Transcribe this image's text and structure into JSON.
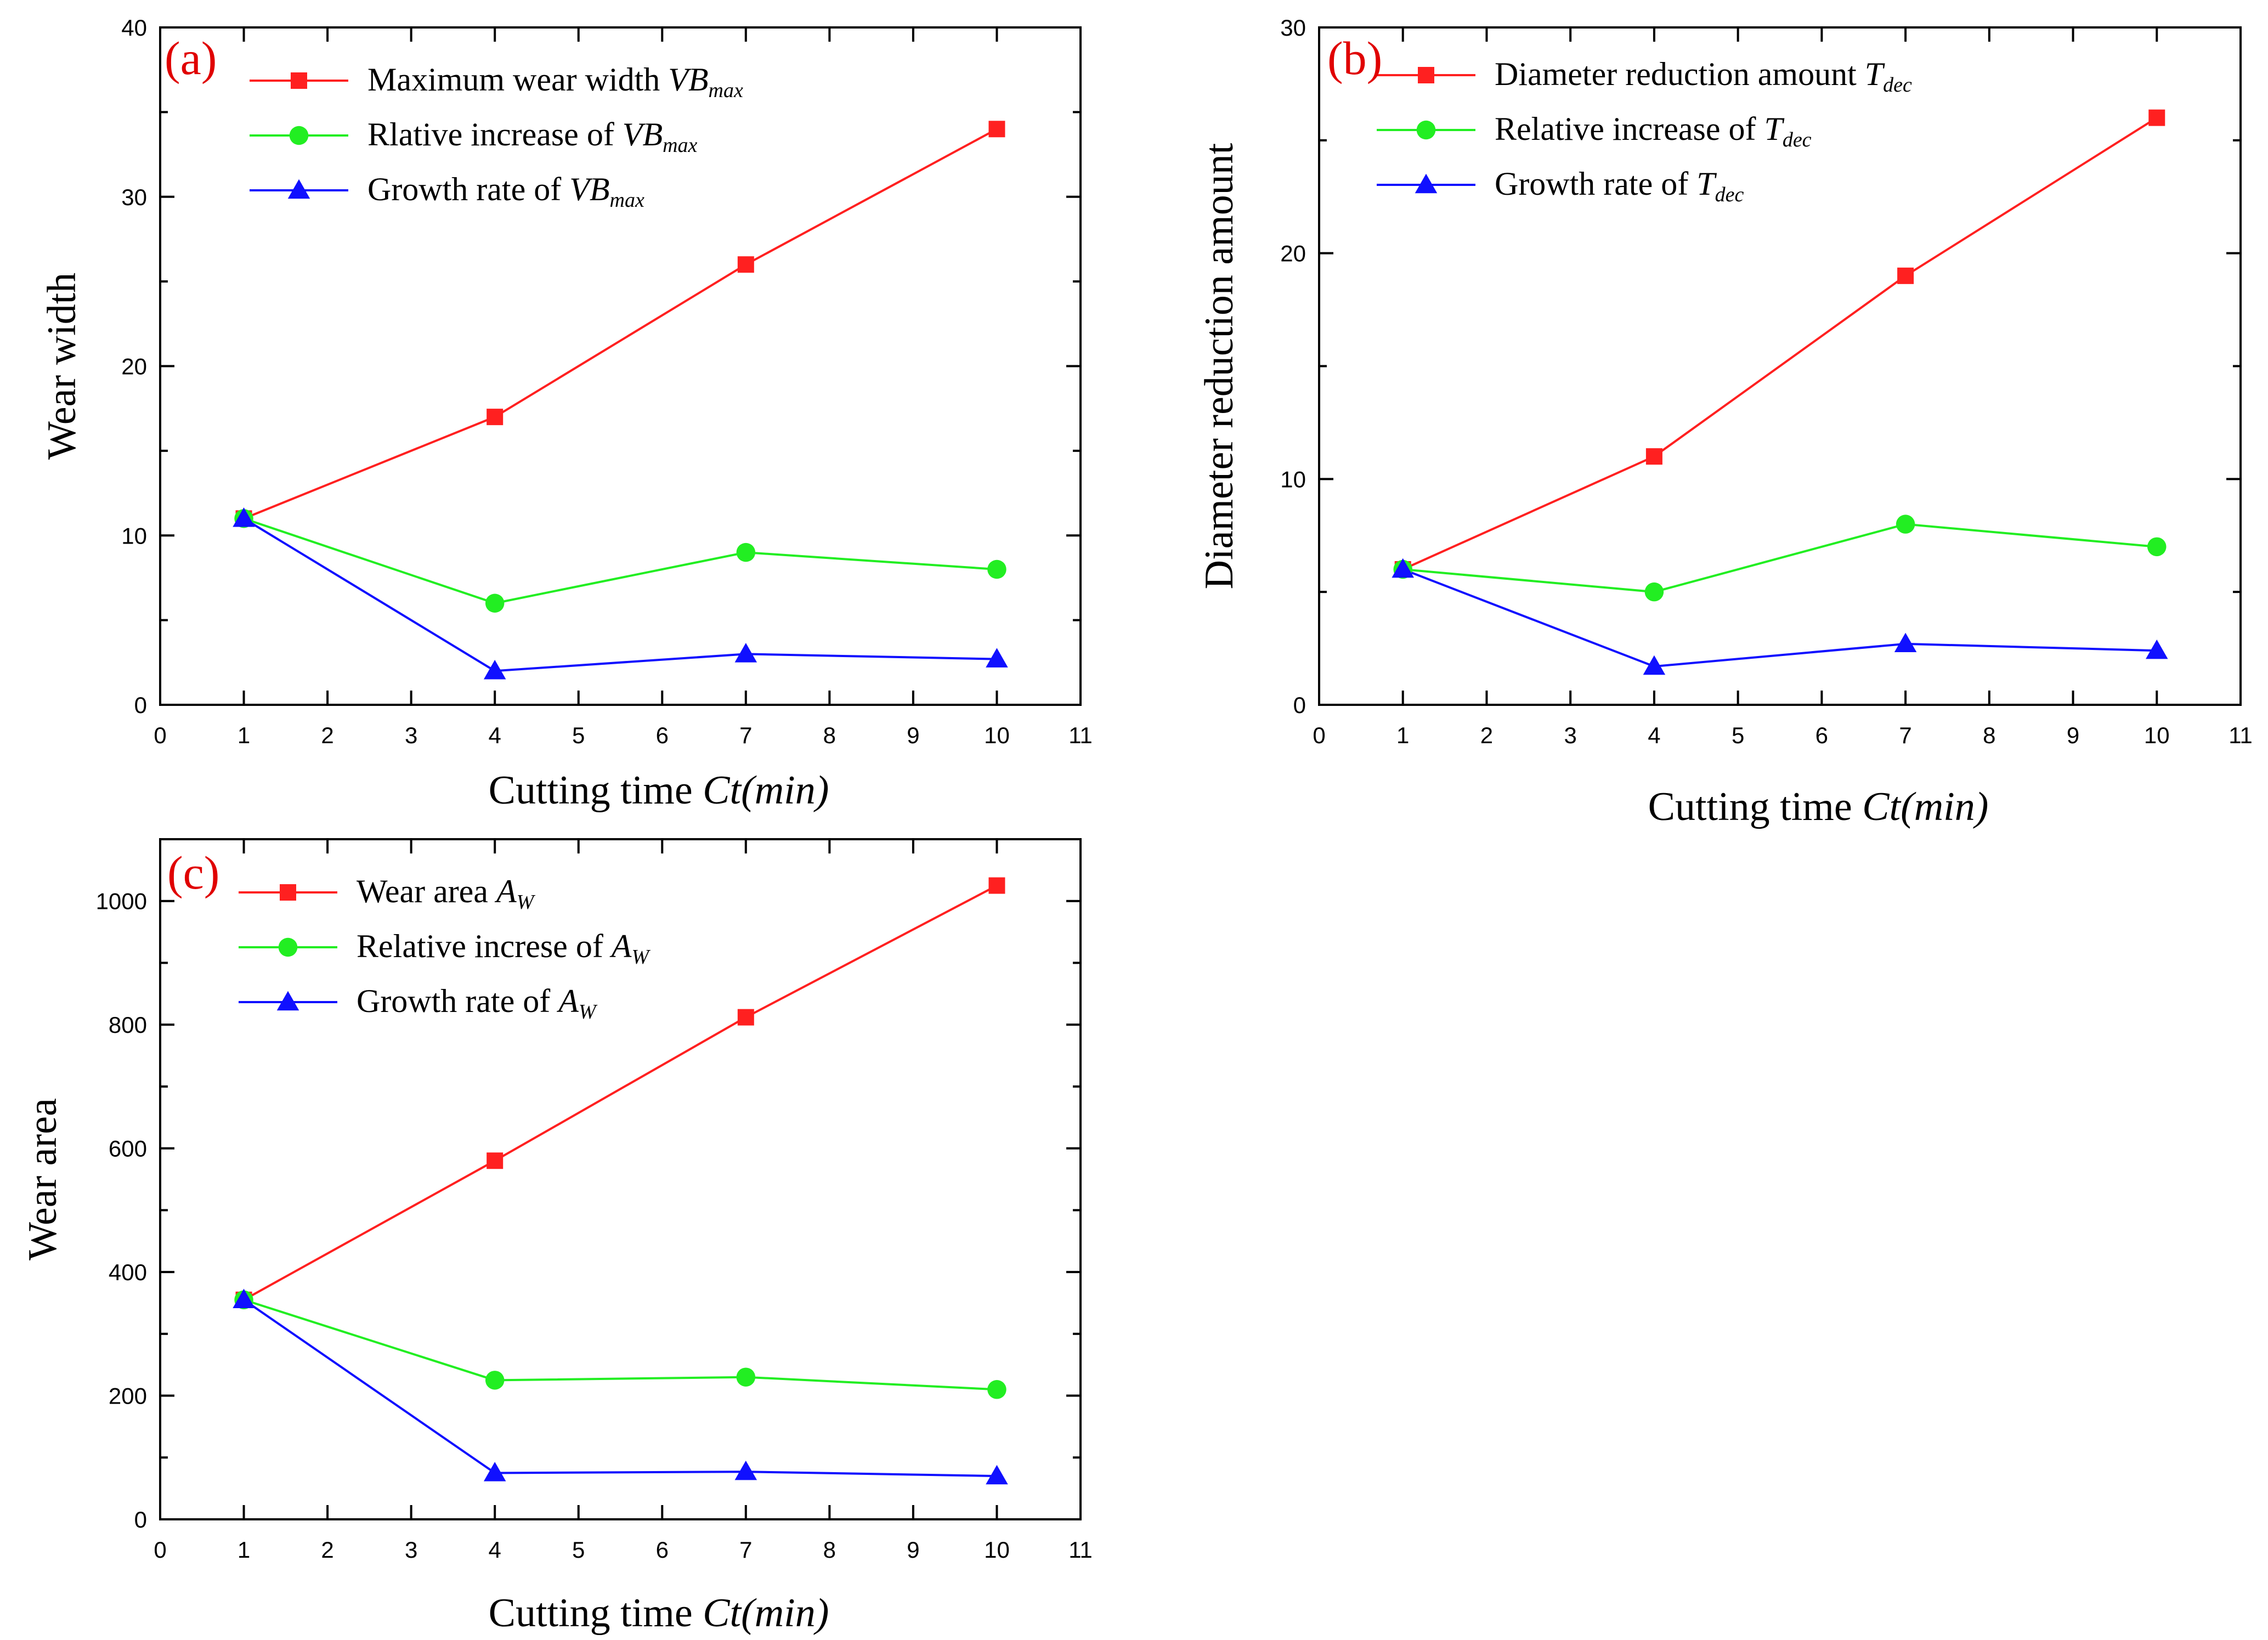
{
  "chart_data": [
    {
      "type": "line",
      "panel_label": "(a)",
      "xlabel": "Cutting time",
      "xlabel_var": "Ct(min)",
      "ylabel": "Wear width",
      "xlim": [
        0,
        11
      ],
      "ylim": [
        0,
        40
      ],
      "x_ticks": [
        0,
        1,
        2,
        3,
        4,
        5,
        6,
        7,
        8,
        9,
        10,
        11
      ],
      "y_ticks": [
        0,
        10,
        20,
        30,
        40
      ],
      "legend_position": "top-left",
      "x": [
        1,
        4,
        7,
        10
      ],
      "series": [
        {
          "name": "Maximum wear width",
          "symbol_main": "VB",
          "symbol_sub": "max",
          "color": "#ff2020",
          "marker": "square",
          "values": [
            11,
            17,
            26,
            34
          ]
        },
        {
          "name": "Rlative increase of",
          "symbol_main": "VB",
          "symbol_sub": "max",
          "color": "#22ee22",
          "marker": "circle",
          "values": [
            11,
            6,
            9,
            8
          ]
        },
        {
          "name": "Growth rate of",
          "symbol_main": "VB",
          "symbol_sub": "max",
          "color": "#1010ff",
          "marker": "triangle",
          "values": [
            11,
            2,
            3,
            2.7
          ]
        }
      ]
    },
    {
      "type": "line",
      "panel_label": "(b)",
      "xlabel": "Cutting time",
      "xlabel_var": "Ct(min)",
      "ylabel": "Diameter reduction amount",
      "xlim": [
        0,
        11
      ],
      "ylim": [
        0,
        30
      ],
      "x_ticks": [
        0,
        1,
        2,
        3,
        4,
        5,
        6,
        7,
        8,
        9,
        10,
        11
      ],
      "y_ticks": [
        0,
        10,
        20,
        30
      ],
      "legend_position": "top-left",
      "x": [
        1,
        4,
        7,
        10
      ],
      "series": [
        {
          "name": "Diameter reduction amount",
          "symbol_main": "T",
          "symbol_sub": "dec",
          "color": "#ff2020",
          "marker": "square",
          "values": [
            6,
            11,
            19,
            26
          ]
        },
        {
          "name": "Relative increase of",
          "symbol_main": "T",
          "symbol_sub": "dec",
          "color": "#22ee22",
          "marker": "circle",
          "values": [
            6,
            5,
            8,
            7
          ]
        },
        {
          "name": "Growth rate of",
          "symbol_main": "T",
          "symbol_sub": "dec",
          "color": "#1010ff",
          "marker": "triangle",
          "values": [
            6,
            1.7,
            2.7,
            2.4
          ]
        }
      ]
    },
    {
      "type": "line",
      "panel_label": "(c)",
      "xlabel": "Cutting time",
      "xlabel_var": "Ct(min)",
      "ylabel": "Wear area",
      "xlim": [
        0,
        11
      ],
      "ylim": [
        0,
        1100
      ],
      "x_ticks": [
        0,
        1,
        2,
        3,
        4,
        5,
        6,
        7,
        8,
        9,
        10,
        11
      ],
      "y_ticks": [
        0,
        200,
        400,
        600,
        800,
        1000
      ],
      "legend_position": "top-left",
      "x": [
        1,
        4,
        7,
        10
      ],
      "series": [
        {
          "name": "Wear area",
          "symbol_main": "A",
          "symbol_sub": "W",
          "color": "#ff2020",
          "marker": "square",
          "values": [
            355,
            580,
            812,
            1025
          ]
        },
        {
          "name": "Relative increse of",
          "symbol_main": "A",
          "symbol_sub": "W",
          "color": "#22ee22",
          "marker": "circle",
          "values": [
            355,
            225,
            230,
            210
          ]
        },
        {
          "name": "Growth rate of",
          "symbol_main": "A",
          "symbol_sub": "W",
          "color": "#1010ff",
          "marker": "triangle",
          "values": [
            355,
            75,
            77,
            70
          ]
        }
      ]
    }
  ]
}
